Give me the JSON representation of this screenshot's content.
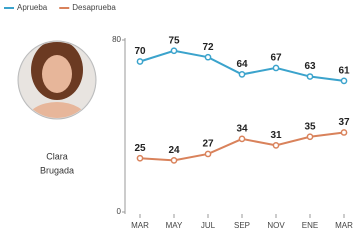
{
  "chart_data": {
    "type": "line",
    "person": {
      "name_line1": "Clara",
      "name_line2": "Brugada"
    },
    "categories": [
      "MAR",
      "MAY",
      "JUL",
      "SEP",
      "NOV",
      "ENE",
      "MAR"
    ],
    "series": [
      {
        "name": "Aprueba",
        "color": "#3ba3cc",
        "values": [
          70,
          75,
          72,
          64,
          67,
          63,
          61
        ]
      },
      {
        "name": "Desaprueba",
        "color": "#d9825b",
        "values": [
          25,
          24,
          27,
          34,
          31,
          35,
          37
        ]
      }
    ],
    "ylim": [
      0,
      80
    ],
    "yticks": [
      0,
      80
    ]
  }
}
